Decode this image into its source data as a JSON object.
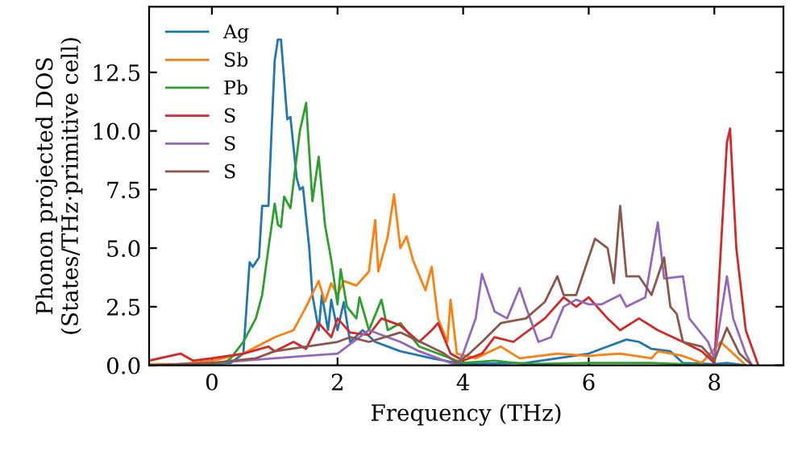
{
  "chart_data": {
    "type": "line",
    "xlabel": "Frequency (THz)",
    "ylabel": "Phonon projected DOS\n(States/THz·primitive cell)",
    "xlim": [
      -1,
      9.1
    ],
    "ylim": [
      0,
      15.3
    ],
    "xticks": [
      0,
      2,
      4,
      6,
      8
    ],
    "yticks": [
      {
        "value": 0,
        "label": "0.0"
      },
      {
        "value": 2.5,
        "label": "2.5"
      },
      {
        "value": 5,
        "label": "5.0"
      },
      {
        "value": 7.5,
        "label": "7.5"
      },
      {
        "value": 10,
        "label": "10.0"
      },
      {
        "value": 12.5,
        "label": "12.5"
      }
    ],
    "grid": false,
    "legend": "top left",
    "marker": "none",
    "line_style": "solid",
    "series": [
      {
        "name": "Ag",
        "color": "#1f77b4",
        "x": [
          -1,
          0,
          0.3,
          0.5,
          0.6,
          0.65,
          0.75,
          0.8,
          0.9,
          0.95,
          1.0,
          1.05,
          1.1,
          1.2,
          1.25,
          1.35,
          1.4,
          1.45,
          1.55,
          1.6,
          1.7,
          1.75,
          1.85,
          1.9,
          2.0,
          2.1,
          2.2,
          2.4,
          2.6,
          3.0,
          3.5,
          4.0,
          5.0,
          5.5,
          6.0,
          6.3,
          6.6,
          6.8,
          7.0,
          7.3,
          7.5,
          8.0,
          8.2,
          8.5
        ],
        "values": [
          0,
          0.05,
          0.1,
          0.5,
          4.4,
          4.2,
          4.6,
          6.8,
          6.8,
          10,
          13,
          13.9,
          13.9,
          10.5,
          10.6,
          8,
          7.5,
          7.6,
          5,
          3,
          1.5,
          3,
          1.5,
          2.8,
          1.5,
          2.7,
          1.0,
          1.5,
          1.0,
          0.6,
          0.3,
          0.05,
          0.1,
          0.3,
          0.5,
          0.8,
          1.1,
          1.0,
          0.7,
          0.6,
          0.1,
          0.05,
          0.1,
          0
        ]
      },
      {
        "name": "Sb",
        "color": "#ff7f0e",
        "x": [
          -1,
          -0.5,
          0,
          0.5,
          1.0,
          1.3,
          1.5,
          1.7,
          1.8,
          1.9,
          2.0,
          2.1,
          2.3,
          2.5,
          2.6,
          2.65,
          2.8,
          2.9,
          3.0,
          3.1,
          3.2,
          3.4,
          3.5,
          3.6,
          3.75,
          3.8,
          3.9,
          4.2,
          4.6,
          4.9,
          5.5,
          6.0,
          6.5,
          7.0,
          7.1,
          7.5,
          7.8,
          8.1,
          8.3,
          8.5
        ],
        "values": [
          0.05,
          0.05,
          0.2,
          0.5,
          1.2,
          1.5,
          2.5,
          3.6,
          2.7,
          3.5,
          3.0,
          3.6,
          3.4,
          4.0,
          6.2,
          4.0,
          5.5,
          7.3,
          5.0,
          5.5,
          4.5,
          3.2,
          4.2,
          2.0,
          1.0,
          2.8,
          0.5,
          0.3,
          0.8,
          0.3,
          0.5,
          0.4,
          0.5,
          0.3,
          0.6,
          0.4,
          0.1,
          1.0,
          0.5,
          0
        ]
      },
      {
        "name": "Pb",
        "color": "#2ca02c",
        "x": [
          -1,
          0,
          0.2,
          0.3,
          0.5,
          0.7,
          0.8,
          0.9,
          1.0,
          1.05,
          1.1,
          1.15,
          1.25,
          1.4,
          1.5,
          1.6,
          1.7,
          1.8,
          1.9,
          2.0,
          2.05,
          2.15,
          2.3,
          2.35,
          2.5,
          2.7,
          2.8,
          3.0,
          3.3,
          3.6,
          4.0,
          4.5,
          5.0,
          6.0,
          7.0,
          8.0,
          8.5
        ],
        "values": [
          0,
          0.05,
          0.1,
          0.3,
          1,
          2,
          3,
          5,
          6.9,
          6.0,
          5.9,
          7.2,
          6.7,
          10,
          11.2,
          7,
          8.9,
          6,
          4.5,
          2.6,
          4.1,
          2.5,
          2.0,
          2.9,
          1.5,
          2.8,
          1.5,
          1.8,
          0.8,
          0.5,
          0.1,
          0.2,
          0.05,
          0.1,
          0.1,
          0,
          0
        ]
      },
      {
        "name": "S",
        "color": "#d62728",
        "x": [
          -1,
          -0.5,
          -0.3,
          0,
          0.5,
          0.9,
          1.0,
          1.3,
          1.5,
          1.7,
          1.9,
          2.0,
          2.2,
          2.5,
          2.7,
          3.0,
          3.3,
          3.5,
          3.6,
          3.8,
          4.0,
          4.3,
          4.5,
          4.8,
          5.3,
          5.6,
          5.8,
          6.0,
          6.3,
          6.5,
          6.8,
          7.1,
          7.5,
          7.8,
          8.0,
          8.2,
          8.25,
          8.35,
          8.5,
          8.7
        ],
        "values": [
          0.2,
          0.5,
          0.2,
          0.3,
          0.5,
          0.8,
          0.6,
          1.0,
          0.7,
          1.8,
          1.2,
          2.0,
          1.4,
          1.3,
          2.0,
          1.7,
          1.0,
          1.5,
          1.8,
          0.5,
          0.2,
          0.5,
          1.2,
          1.0,
          2.0,
          2.9,
          2.5,
          2.9,
          2.0,
          1.5,
          2.0,
          1.5,
          1.0,
          0.6,
          0.1,
          9.5,
          10.1,
          5.0,
          1.5,
          0
        ]
      },
      {
        "name": "S",
        "color": "#9467bd",
        "x": [
          -1,
          0,
          0.5,
          1,
          1.5,
          2.0,
          2.5,
          3,
          3.3,
          3.7,
          3.9,
          4.0,
          4.2,
          4.3,
          4.5,
          4.7,
          4.9,
          5.0,
          5.2,
          5.4,
          5.6,
          5.8,
          6.0,
          6.2,
          6.5,
          6.6,
          6.9,
          7.1,
          7.2,
          7.5,
          7.6,
          7.9,
          8.0,
          8.2,
          8.3,
          8.5,
          8.6
        ],
        "values": [
          0,
          0.1,
          0.2,
          0.3,
          0.4,
          0.5,
          1.5,
          1.0,
          0.6,
          0.2,
          0,
          0.5,
          2.0,
          3.9,
          2.3,
          2.0,
          3.3,
          2.5,
          1.0,
          1.2,
          2.5,
          2.8,
          2.6,
          2.6,
          3.0,
          2.5,
          2.9,
          6.1,
          3.7,
          3.8,
          2.0,
          1.0,
          0.3,
          3.8,
          2.0,
          0.5,
          0
        ]
      },
      {
        "name": "S",
        "color": "#8c564b",
        "x": [
          -1,
          0,
          0.7,
          1.0,
          1.5,
          2.0,
          2.2,
          2.5,
          3.0,
          3.4,
          3.7,
          3.9,
          4.1,
          4.3,
          4.6,
          5.0,
          5.3,
          5.5,
          5.6,
          5.8,
          6.1,
          6.3,
          6.4,
          6.5,
          6.6,
          6.8,
          7.0,
          7.2,
          7.3,
          7.4,
          7.5,
          7.8,
          8.0,
          8.2,
          8.4,
          8.6
        ],
        "values": [
          0,
          0.1,
          0.3,
          0.6,
          0.8,
          1.0,
          1.2,
          1.0,
          1.4,
          0.9,
          0.5,
          0.1,
          0.5,
          1.0,
          1.8,
          2.0,
          2.7,
          3.8,
          3.0,
          3.0,
          5.4,
          5.0,
          3.5,
          6.8,
          3.8,
          3.8,
          3.0,
          4.6,
          2.5,
          2.2,
          1.0,
          0.8,
          0.2,
          1.6,
          0.5,
          0
        ]
      }
    ]
  }
}
